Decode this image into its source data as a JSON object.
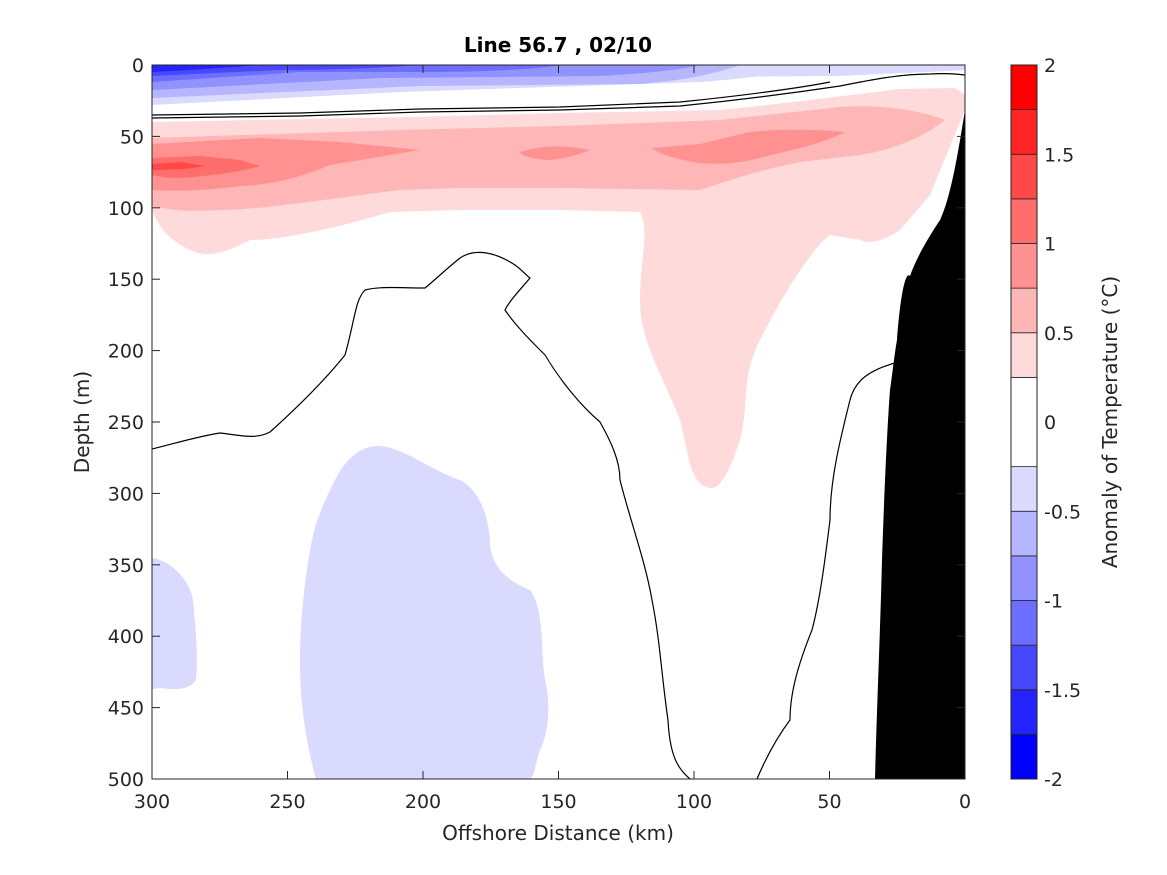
{
  "chart_data": {
    "type": "contourf",
    "title": "Line 56.7 , 02/10",
    "xlabel": "Offshore Distance (km)",
    "ylabel": "Depth (m)",
    "xlim": [
      300,
      0
    ],
    "ylim": [
      500,
      0
    ],
    "x_reversed": true,
    "y_reversed": true,
    "x_ticks": [
      "300",
      "250",
      "200",
      "150",
      "100",
      "50",
      "0"
    ],
    "y_ticks": [
      "0",
      "50",
      "100",
      "150",
      "200",
      "250",
      "300",
      "350",
      "400",
      "450",
      "500"
    ],
    "colorbar": {
      "label": "Anomaly of Temperature (°C)",
      "range": [
        -2,
        2
      ],
      "tick_labels": [
        "2",
        "1.5",
        "1",
        "0.5",
        "0",
        "-0.5",
        "-1",
        "-1.5",
        "-2"
      ],
      "levels": [
        -2,
        -1.75,
        -1.5,
        -1.25,
        -1,
        -0.75,
        -0.5,
        -0.25,
        0.25,
        0.5,
        0.75,
        1,
        1.25,
        1.5,
        1.75,
        2
      ],
      "colors": [
        "#0000ff",
        "#2424ff",
        "#4848ff",
        "#6d6dff",
        "#9191ff",
        "#b6b6ff",
        "#dadaff",
        "#ffffff",
        "#ffdada",
        "#ffb6b6",
        "#ff9191",
        "#ff6d6d",
        "#ff4848",
        "#ff2424",
        "#ff0000"
      ]
    },
    "features": [
      {
        "kind": "surface_cold_layer",
        "depth_range_m": [
          0,
          30
        ],
        "min_anomaly": -1.75
      },
      {
        "kind": "warm_layer",
        "depth_range_m": [
          35,
          130
        ],
        "max_anomaly": 1.0
      },
      {
        "kind": "warm_tongue",
        "x_km_range": [
          85,
          130
        ],
        "max_depth_m": 295,
        "anomaly": 0.25
      },
      {
        "kind": "cool_patch",
        "x_km_range": [
          155,
          245
        ],
        "depth_range_m": [
          265,
          500
        ],
        "anomaly": -0.25
      },
      {
        "kind": "cool_patch",
        "x_km_range": [
          274,
          300
        ],
        "depth_range_m": [
          345,
          436
        ],
        "anomaly": -0.25
      },
      {
        "kind": "bathymetry",
        "note": "continental slope near shore"
      }
    ]
  }
}
